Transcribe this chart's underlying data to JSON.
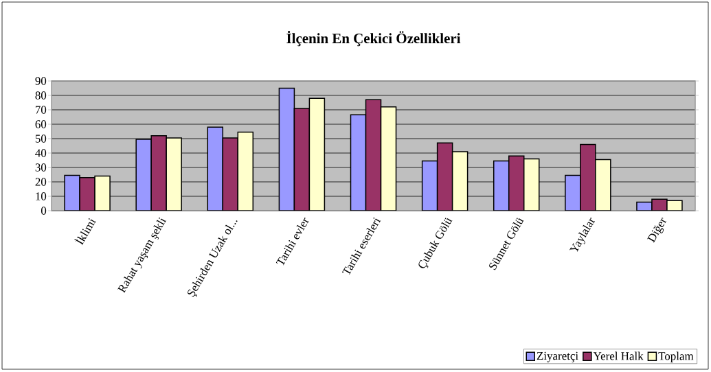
{
  "chart_data": {
    "type": "bar",
    "title": "İlçenin En Çekici Özellikleri",
    "categories": [
      "İklimi",
      "Rahat yaşam şekli",
      "Şehirden  Uzak ol...",
      "Tarihi evler",
      "Tarihi eserleri",
      "Çubuk Gölü",
      "Sünnet Gölü",
      "Yaylalar",
      "Diğer"
    ],
    "series": [
      {
        "name": "Ziyaretçi",
        "color": "#9999ff",
        "values": [
          24.5,
          49.5,
          58,
          85,
          66.5,
          34.5,
          34.5,
          24.5,
          6
        ]
      },
      {
        "name": "Yerel Halk",
        "color": "#993366",
        "values": [
          23,
          52,
          50.5,
          71,
          77,
          47,
          38,
          46,
          8
        ]
      },
      {
        "name": "Toplam",
        "color": "#ffffcc",
        "values": [
          24,
          50.5,
          54.5,
          78,
          72,
          41,
          36,
          35.5,
          7
        ]
      }
    ],
    "ylim": [
      0,
      90
    ],
    "yticks": [
      0,
      10,
      20,
      30,
      40,
      50,
      60,
      70,
      80,
      90
    ],
    "grid": "y",
    "legend": "bottom right"
  }
}
